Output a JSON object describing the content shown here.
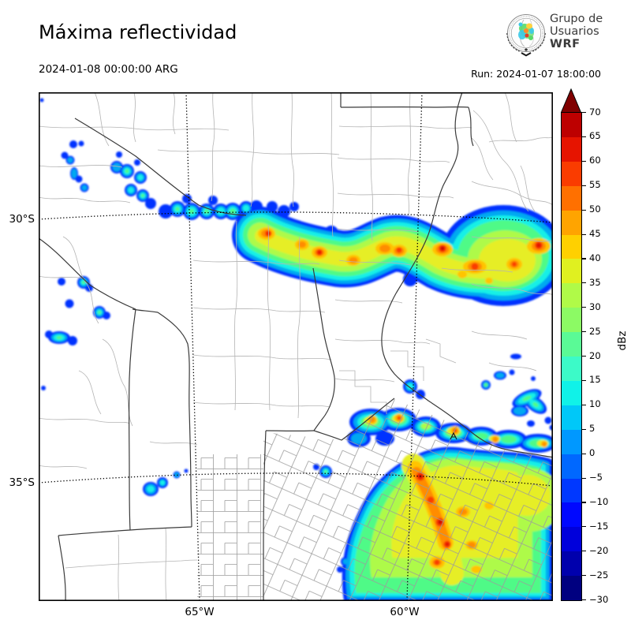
{
  "header": {
    "title": "Máxima reflectividad",
    "valid_time": "2024-01-08 00:00:00 ARG",
    "run_label": "Run: 2024-01-07 18:00:00"
  },
  "logo": {
    "line1": "Grupo de",
    "line2": "Usuarios",
    "line3": "WRF"
  },
  "map": {
    "lat_labels": [
      "30°S",
      "35°S"
    ],
    "lon_labels": [
      "65°W",
      "60°W"
    ]
  },
  "colorbar": {
    "units": "dBz",
    "tick_values": [
      70,
      65,
      60,
      55,
      50,
      45,
      40,
      35,
      30,
      25,
      20,
      15,
      10,
      5,
      0,
      -5,
      -10,
      -15,
      -20,
      -25,
      -30
    ],
    "segment_colors_bottom_to_top": [
      "#000080",
      "#0000ad",
      "#0000db",
      "#0008ff",
      "#0038ff",
      "#0068ff",
      "#0098ff",
      "#00c8f8",
      "#10f2e8",
      "#3cfac8",
      "#5afa96",
      "#8cfa64",
      "#b0fa48",
      "#e0f020",
      "#ffd000",
      "#ffa400",
      "#ff7000",
      "#fa3c00",
      "#e61400",
      "#bd0000"
    ],
    "over_arrow_color": "#800000"
  },
  "radar_features": [
    {
      "name": "nw-scattered-cells",
      "desc": "Scattered small convective cells over the northwest, ~5-35 dBz"
    },
    {
      "name": "central-band",
      "desc": "WSW-ENE storm band along ~30°S with embedded cores up to ~60 dBz"
    },
    {
      "name": "mid-cluster-line",
      "desc": "Broken line of cells near 33.5-34.5°S with cores up to ~55 dBz"
    },
    {
      "name": "se-storm-cluster",
      "desc": "Large storm cluster in the southeast with a NW-SE core band up to ~60 dBz"
    }
  ]
}
